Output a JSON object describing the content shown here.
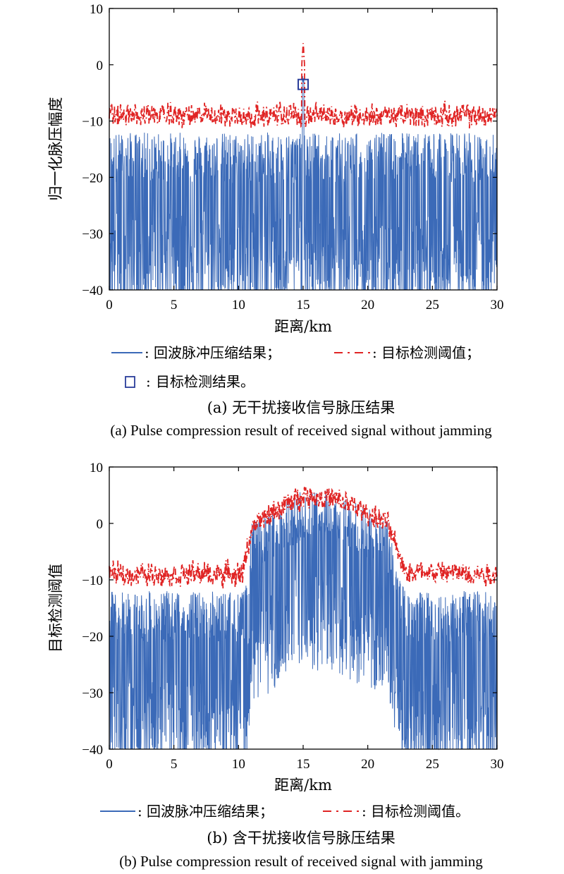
{
  "colors": {
    "echo": "#3b6ab8",
    "threshold": "#e02424",
    "marker": "#2a3d9a",
    "axis": "#000000"
  },
  "chart_data": [
    {
      "type": "line",
      "title": "",
      "xlabel": "距离/km",
      "ylabel": "归一化脉压幅度",
      "xlim": [
        0,
        30
      ],
      "ylim": [
        -40,
        10
      ],
      "xticks": [
        0,
        5,
        10,
        15,
        20,
        25,
        30
      ],
      "yticks": [
        -40,
        -30,
        -20,
        -10,
        0,
        10
      ],
      "series": [
        {
          "name": "回波脉冲压缩结果",
          "style": "solid",
          "profile": [
            [
              0,
              -24
            ],
            [
              30,
              -24
            ]
          ],
          "noise_span": 14,
          "peak": {
            "x": 15.0,
            "y": -3.5
          }
        },
        {
          "name": "目标检测阈值",
          "style": "dashed",
          "profile": [
            [
              0,
              -9
            ],
            [
              30,
              -9
            ]
          ],
          "noise_span": 3,
          "peak": {
            "x": 15.0,
            "y": 3.5
          }
        }
      ],
      "detection": {
        "name": "目标检测结果",
        "x": 15.0,
        "y": -3.5
      },
      "legend": [
        {
          "label": "回波脉冲压缩结果；",
          "prefix": ":"
        },
        {
          "label": "目标检测阈值；",
          "prefix": ":"
        },
        {
          "label": "目标检测结果。",
          "prefix": ":"
        }
      ],
      "caption_cn": "(a) 无干扰接收信号脉压结果",
      "caption_en": "(a) Pulse compression result of received signal without jamming"
    },
    {
      "type": "line",
      "title": "",
      "xlabel": "距离/km",
      "ylabel": "目标检测阈值",
      "xlim": [
        0,
        30
      ],
      "ylim": [
        -40,
        10
      ],
      "xticks": [
        0,
        5,
        10,
        15,
        20,
        25,
        30
      ],
      "yticks": [
        -40,
        -30,
        -20,
        -10,
        0,
        10
      ],
      "series": [
        {
          "name": "回波脉冲压缩结果",
          "style": "solid",
          "profile": [
            [
              0,
              -24
            ],
            [
              10.5,
              -24
            ],
            [
              11,
              -12
            ],
            [
              13,
              -9
            ],
            [
              15,
              -6
            ],
            [
              17,
              -6
            ],
            [
              19,
              -8
            ],
            [
              21.5,
              -11
            ],
            [
              22.5,
              -22
            ],
            [
              23,
              -24
            ],
            [
              30,
              -24
            ]
          ],
          "noise_span": 14
        },
        {
          "name": "目标检测阈值",
          "style": "dashed",
          "profile": [
            [
              0,
              -9
            ],
            [
              10.3,
              -9
            ],
            [
              11,
              -1
            ],
            [
              13,
              2.5
            ],
            [
              15,
              5
            ],
            [
              17,
              4.5
            ],
            [
              19,
              3
            ],
            [
              21.5,
              0
            ],
            [
              22.5,
              -6
            ],
            [
              23,
              -8.5
            ],
            [
              30,
              -9
            ]
          ],
          "noise_span": 3
        }
      ],
      "legend": [
        {
          "label": "回波脉冲压缩结果；",
          "prefix": ":"
        },
        {
          "label": "目标检测阈值。",
          "prefix": ":"
        }
      ],
      "caption_cn": "(b) 含干扰接收信号脉压结果",
      "caption_en": "(b) Pulse compression result of received signal with jamming"
    }
  ]
}
